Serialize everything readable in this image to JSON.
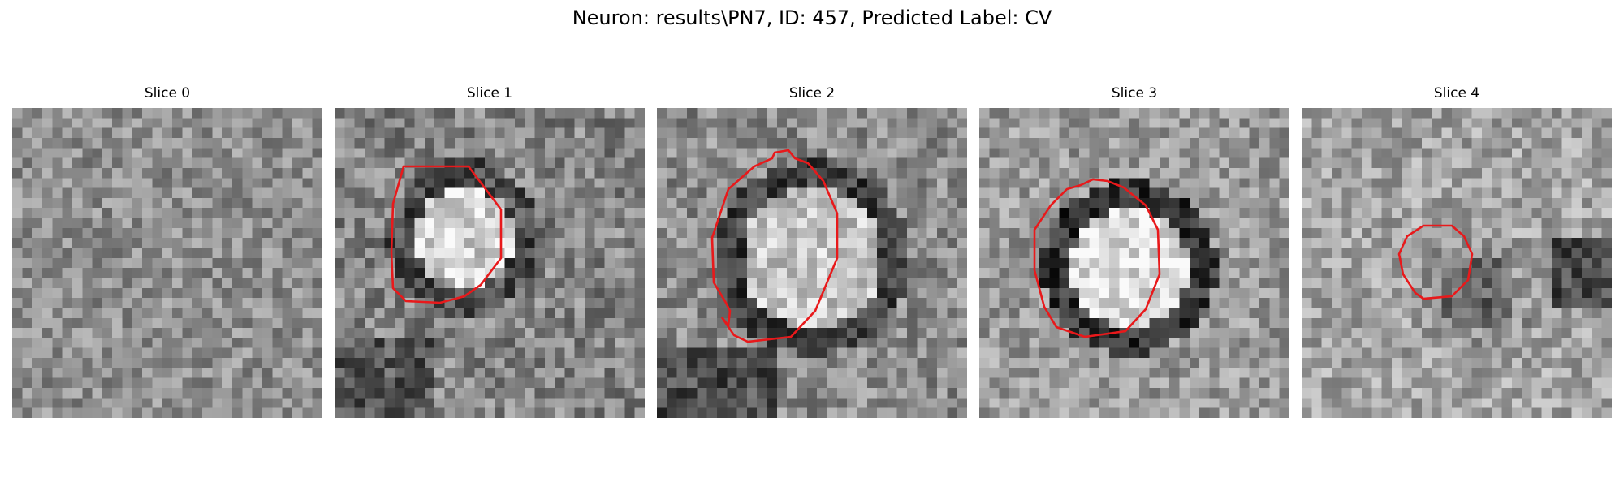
{
  "figure": {
    "title": "Neuron: results\\PN7, ID: 457, Predicted Label: CV"
  },
  "slices": [
    {
      "title": "Slice 0",
      "has_contour": false,
      "seed": 11,
      "mean": 0.56,
      "spread": 0.34,
      "blob_base": 0.0,
      "blob_ring": 0.0
    },
    {
      "title": "Slice 1",
      "has_contour": true,
      "seed": 23,
      "mean": 0.52,
      "spread": 0.4,
      "blob_base": 0.3,
      "blob_ring": -0.22
    },
    {
      "title": "Slice 2",
      "has_contour": true,
      "seed": 37,
      "mean": 0.55,
      "spread": 0.38,
      "blob_base": 0.22,
      "blob_ring": -0.3
    },
    {
      "title": "Slice 3",
      "has_contour": true,
      "seed": 41,
      "mean": 0.6,
      "spread": 0.36,
      "blob_base": 0.25,
      "blob_ring": -0.4
    },
    {
      "title": "Slice 4",
      "has_contour": true,
      "seed": 53,
      "mean": 0.64,
      "spread": 0.36,
      "blob_base": -0.25,
      "blob_ring": -0.05
    }
  ],
  "colors": {
    "contour": "#e8191b",
    "background": "#ffffff"
  }
}
